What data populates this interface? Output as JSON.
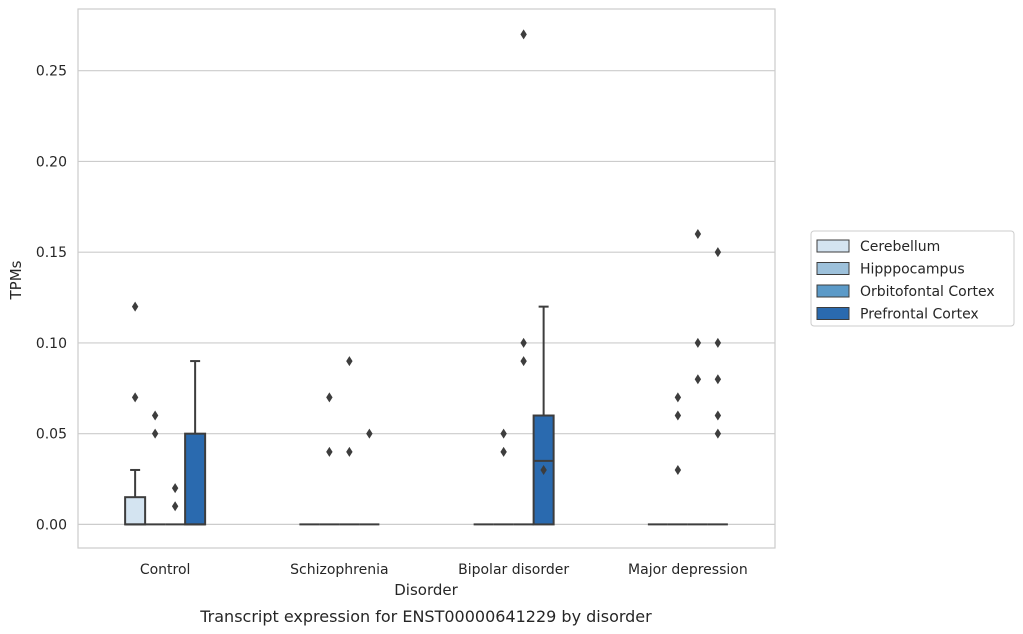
{
  "chart_data": {
    "type": "box",
    "title": "",
    "caption": "Transcript expression for ENST00000641229 by disorder",
    "xlabel": "Disorder",
    "ylabel": "TPMs",
    "categories": [
      "Control",
      "Schizophrenia",
      "Bipolar disorder",
      "Major depression"
    ],
    "ylim": [
      -0.013,
      0.284
    ],
    "yticks": [
      0.0,
      0.05,
      0.1,
      0.15,
      0.2,
      0.25
    ],
    "ytick_labels": [
      "0.00",
      "0.05",
      "0.10",
      "0.15",
      "0.20",
      "0.25"
    ],
    "grid": "horizontal",
    "legend_position": "right",
    "series": [
      {
        "name": "Cerebellum",
        "color": "#d4e4f1",
        "boxes": [
          {
            "q1": 0.0,
            "median": 0.0,
            "q3": 0.015,
            "whisker_low": 0.0,
            "whisker_high": 0.03,
            "outliers": [
              0.07,
              0.12
            ]
          },
          {
            "q1": 0.0,
            "median": 0.0,
            "q3": 0.0,
            "whisker_low": 0.0,
            "whisker_high": 0.0,
            "outliers": []
          },
          {
            "q1": 0.0,
            "median": 0.0,
            "q3": 0.0,
            "whisker_low": 0.0,
            "whisker_high": 0.0,
            "outliers": []
          },
          {
            "q1": 0.0,
            "median": 0.0,
            "q3": 0.0,
            "whisker_low": 0.0,
            "whisker_high": 0.0,
            "outliers": []
          }
        ]
      },
      {
        "name": "Hipppocampus",
        "color": "#9dc1db",
        "boxes": [
          {
            "q1": 0.0,
            "median": 0.0,
            "q3": 0.0,
            "whisker_low": 0.0,
            "whisker_high": 0.0,
            "outliers": [
              0.05,
              0.06
            ]
          },
          {
            "q1": 0.0,
            "median": 0.0,
            "q3": 0.0,
            "whisker_low": 0.0,
            "whisker_high": 0.0,
            "outliers": [
              0.04,
              0.07
            ]
          },
          {
            "q1": 0.0,
            "median": 0.0,
            "q3": 0.0,
            "whisker_low": 0.0,
            "whisker_high": 0.0,
            "outliers": [
              0.04,
              0.05
            ]
          },
          {
            "q1": 0.0,
            "median": 0.0,
            "q3": 0.0,
            "whisker_low": 0.0,
            "whisker_high": 0.0,
            "outliers": [
              0.03,
              0.06,
              0.07
            ]
          }
        ]
      },
      {
        "name": "Orbitofontal Cortex",
        "color": "#5b9ac8",
        "boxes": [
          {
            "q1": 0.0,
            "median": 0.0,
            "q3": 0.0,
            "whisker_low": 0.0,
            "whisker_high": 0.0,
            "outliers": [
              0.01,
              0.02
            ]
          },
          {
            "q1": 0.0,
            "median": 0.0,
            "q3": 0.0,
            "whisker_low": 0.0,
            "whisker_high": 0.0,
            "outliers": [
              0.04,
              0.09
            ]
          },
          {
            "q1": 0.0,
            "median": 0.0,
            "q3": 0.0,
            "whisker_low": 0.0,
            "whisker_high": 0.0,
            "outliers": [
              0.09,
              0.1,
              0.27
            ]
          },
          {
            "q1": 0.0,
            "median": 0.0,
            "q3": 0.0,
            "whisker_low": 0.0,
            "whisker_high": 0.0,
            "outliers": [
              0.08,
              0.1,
              0.16
            ]
          }
        ]
      },
      {
        "name": "Prefrontal Cortex",
        "color": "#2a6aaf",
        "boxes": [
          {
            "q1": 0.0,
            "median": 0.0,
            "q3": 0.05,
            "whisker_low": 0.0,
            "whisker_high": 0.09,
            "outliers": []
          },
          {
            "q1": 0.0,
            "median": 0.0,
            "q3": 0.0,
            "whisker_low": 0.0,
            "whisker_high": 0.0,
            "outliers": [
              0.05
            ]
          },
          {
            "q1": 0.0,
            "median": 0.035,
            "q3": 0.06,
            "whisker_low": 0.0,
            "whisker_high": 0.12,
            "outliers": [
              0.03
            ]
          },
          {
            "q1": 0.0,
            "median": 0.0,
            "q3": 0.0,
            "whisker_low": 0.0,
            "whisker_high": 0.0,
            "outliers": [
              0.05,
              0.06,
              0.08,
              0.1,
              0.15
            ]
          }
        ]
      }
    ]
  }
}
